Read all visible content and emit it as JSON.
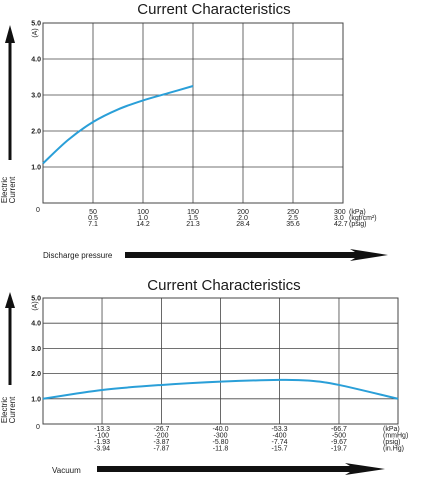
{
  "chart_data": [
    {
      "type": "line",
      "title": "Current Characteristics",
      "ylabel": "Electric Current",
      "y_unit": "(A)",
      "xlabel": "Discharge pressure",
      "y_ticks": [
        "1.0",
        "2.0",
        "3.0",
        "4.0",
        "5.0"
      ],
      "origin_label": "0",
      "ylim": [
        0,
        5
      ],
      "xlim": [
        0,
        300
      ],
      "grid": true,
      "x_tick_values": [
        50,
        100,
        150,
        200,
        250,
        300
      ],
      "x_tick_rows": [
        [
          "50",
          "100",
          "150",
          "200",
          "250",
          "300"
        ],
        [
          "0.5",
          "1.0",
          "1.5",
          "2.0",
          "2.5",
          "3.0"
        ],
        [
          "7.1",
          "14.2",
          "21.3",
          "28.4",
          "35.6",
          "42.7"
        ]
      ],
      "x_units": [
        "(kPa)",
        "(kgf/cm²)",
        "(psig)"
      ],
      "series": [
        {
          "color": "#2a9fd8",
          "x": [
            0,
            25,
            50,
            75,
            100,
            125,
            150
          ],
          "y": [
            1.1,
            1.75,
            2.25,
            2.6,
            2.85,
            3.05,
            3.25
          ]
        }
      ]
    },
    {
      "type": "line",
      "title": "Current Characteristics",
      "ylabel": "Electric Current",
      "y_unit": "(A)",
      "xlabel": "Vacuum",
      "y_ticks": [
        "1.0",
        "2.0",
        "3.0",
        "4.0",
        "5.0"
      ],
      "origin_label": "0",
      "ylim": [
        0,
        5
      ],
      "xlim": [
        0,
        -80
      ],
      "grid": true,
      "x_tick_values": [
        -13.3,
        -26.7,
        -40.0,
        -53.3,
        -66.7
      ],
      "x_tick_rows": [
        [
          "-13.3",
          "-26.7",
          "-40.0",
          "-53.3",
          "-66.7"
        ],
        [
          "-100",
          "-200",
          "-300",
          "-400",
          "-500"
        ],
        [
          "-1.93",
          "-3.87",
          "-5.80",
          "-7.74",
          "-9.67"
        ],
        [
          "-3.94",
          "-7.87",
          "-11.8",
          "-15.7",
          "-19.7"
        ]
      ],
      "x_units": [
        "(kPa)",
        "(mmHg)",
        "(psig)",
        "(in.Hg)"
      ],
      "series": [
        {
          "color": "#2a9fd8",
          "x": [
            0,
            -13.3,
            -26.7,
            -40.0,
            -53.3,
            -60.0,
            -66.7,
            -80.0
          ],
          "y": [
            1.0,
            1.35,
            1.55,
            1.68,
            1.75,
            1.72,
            1.55,
            1.0
          ]
        }
      ]
    }
  ]
}
